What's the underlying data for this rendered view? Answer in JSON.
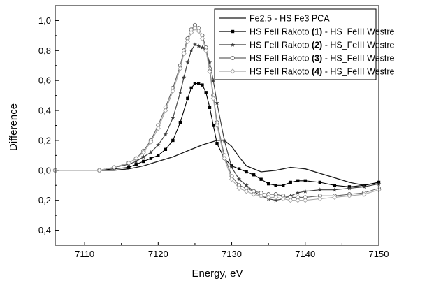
{
  "chart_data": {
    "type": "line",
    "title": "",
    "xlabel": "Energy, eV",
    "ylabel": "Difference",
    "xlim": [
      7106,
      7150
    ],
    "ylim": [
      -0.5,
      1.1
    ],
    "x_ticks": [
      7110,
      7120,
      7130,
      7140,
      7150
    ],
    "y_ticks": [
      -0.4,
      -0.2,
      0.0,
      0.2,
      0.4,
      0.6,
      0.8,
      1.0
    ],
    "y_tick_labels": [
      "-0,4",
      "-0,2",
      "0,0",
      "0,2",
      "0,4",
      "0,6",
      "0,8",
      "1,0"
    ],
    "grid": false,
    "legend_position": "top-right",
    "legend_items": [
      {
        "text": "Fe2.5 - HS Fe3 PCA",
        "bold": "",
        "suffix": ""
      },
      {
        "text": "HS FeII Rakoto ",
        "bold": "(1)",
        "suffix": " - HS_FeIII Westre"
      },
      {
        "text": "HS FeII Rakoto ",
        "bold": "(2)",
        "suffix": " - HS_FeIII Westre"
      },
      {
        "text": "HS FeII Rakoto ",
        "bold": "(3)",
        "suffix": " - HS_FeIII Westre"
      },
      {
        "text": "HS FeII Rakoto ",
        "bold": "(4)",
        "suffix": " - HS_FeIII Westre"
      }
    ],
    "series": [
      {
        "name": "Fe2.5 - HS Fe3 PCA",
        "color": "#1a1a1a",
        "marker": "none",
        "x": [
          7106,
          7114,
          7116,
          7118,
          7120,
          7122,
          7124,
          7126,
          7128,
          7129,
          7130,
          7131,
          7132,
          7134,
          7136,
          7138,
          7140,
          7142,
          7144,
          7146,
          7148,
          7150
        ],
        "y": [
          0.0,
          0.0,
          0.01,
          0.03,
          0.06,
          0.09,
          0.13,
          0.17,
          0.2,
          0.2,
          0.16,
          0.09,
          0.03,
          -0.01,
          0.0,
          0.02,
          0.01,
          -0.02,
          -0.05,
          -0.08,
          -0.1,
          -0.08
        ]
      },
      {
        "name": "HS FeII Rakoto (1) - HS_FeIII Westre",
        "color": "#000000",
        "marker": "square",
        "x": [
          7106,
          7112,
          7114,
          7116,
          7117,
          7118,
          7119,
          7120,
          7121,
          7122,
          7123,
          7124,
          7124.5,
          7125,
          7125.5,
          7126,
          7126.5,
          7127,
          7127.5,
          7128,
          7129,
          7130,
          7131,
          7132,
          7133,
          7134,
          7135,
          7136,
          7137,
          7138,
          7139,
          7140,
          7142,
          7144,
          7146,
          7148,
          7150
        ],
        "y": [
          0.0,
          0.0,
          0.01,
          0.02,
          0.04,
          0.06,
          0.08,
          0.1,
          0.14,
          0.2,
          0.32,
          0.48,
          0.55,
          0.58,
          0.58,
          0.57,
          0.52,
          0.42,
          0.3,
          0.18,
          0.08,
          0.03,
          0.01,
          -0.01,
          -0.03,
          -0.06,
          -0.09,
          -0.1,
          -0.1,
          -0.08,
          -0.07,
          -0.07,
          -0.08,
          -0.1,
          -0.11,
          -0.1,
          -0.08
        ]
      },
      {
        "name": "HS FeII Rakoto (2) - HS_FeIII Westre",
        "color": "#3a3a3a",
        "marker": "star",
        "x": [
          7106,
          7112,
          7114,
          7116,
          7117,
          7118,
          7119,
          7120,
          7121,
          7122,
          7123,
          7123.5,
          7124,
          7124.5,
          7125,
          7125.5,
          7126,
          7126.5,
          7127,
          7127.5,
          7128,
          7129,
          7130,
          7131,
          7132,
          7133,
          7134,
          7135,
          7136,
          7137,
          7138,
          7139,
          7140,
          7142,
          7144,
          7146,
          7148,
          7150
        ],
        "y": [
          0.0,
          0.0,
          0.02,
          0.04,
          0.06,
          0.09,
          0.12,
          0.17,
          0.24,
          0.35,
          0.52,
          0.62,
          0.72,
          0.8,
          0.84,
          0.83,
          0.82,
          0.8,
          0.72,
          0.6,
          0.45,
          0.2,
          0.02,
          -0.06,
          -0.1,
          -0.14,
          -0.17,
          -0.19,
          -0.2,
          -0.19,
          -0.17,
          -0.15,
          -0.14,
          -0.13,
          -0.13,
          -0.12,
          -0.11,
          -0.09
        ]
      },
      {
        "name": "HS FeII Rakoto (3) - HS_FeIII Westre",
        "color": "#666666",
        "marker": "circle",
        "x": [
          7106,
          7112,
          7114,
          7116,
          7117,
          7118,
          7119,
          7120,
          7121,
          7122,
          7123,
          7123.5,
          7124,
          7124.5,
          7125,
          7125.5,
          7126,
          7126.5,
          7127,
          7127.5,
          7128,
          7129,
          7130,
          7131,
          7132,
          7133,
          7134,
          7135,
          7136,
          7137,
          7138,
          7139,
          7140,
          7142,
          7144,
          7146,
          7148,
          7150
        ],
        "y": [
          0.0,
          0.0,
          0.02,
          0.05,
          0.08,
          0.13,
          0.2,
          0.3,
          0.42,
          0.55,
          0.7,
          0.8,
          0.88,
          0.94,
          0.97,
          0.95,
          0.9,
          0.82,
          0.68,
          0.5,
          0.32,
          0.1,
          -0.04,
          -0.1,
          -0.12,
          -0.14,
          -0.15,
          -0.16,
          -0.16,
          -0.17,
          -0.18,
          -0.18,
          -0.18,
          -0.17,
          -0.17,
          -0.16,
          -0.15,
          -0.12
        ]
      },
      {
        "name": "HS FeII Rakoto (4) - HS_FeIII Westre",
        "color": "#a8a8a8",
        "marker": "diamond",
        "x": [
          7106,
          7112,
          7114,
          7116,
          7117,
          7118,
          7119,
          7120,
          7121,
          7122,
          7123,
          7123.5,
          7124,
          7124.5,
          7125,
          7125.5,
          7126,
          7126.5,
          7127,
          7127.5,
          7128,
          7129,
          7130,
          7131,
          7132,
          7133,
          7134,
          7135,
          7136,
          7137,
          7138,
          7139,
          7140,
          7142,
          7144,
          7146,
          7148,
          7150
        ],
        "y": [
          0.0,
          0.0,
          0.02,
          0.05,
          0.08,
          0.12,
          0.19,
          0.28,
          0.4,
          0.53,
          0.68,
          0.78,
          0.86,
          0.92,
          0.95,
          0.93,
          0.88,
          0.8,
          0.66,
          0.48,
          0.3,
          0.08,
          -0.06,
          -0.12,
          -0.14,
          -0.16,
          -0.17,
          -0.18,
          -0.18,
          -0.19,
          -0.2,
          -0.2,
          -0.2,
          -0.19,
          -0.18,
          -0.17,
          -0.16,
          -0.13
        ]
      }
    ]
  }
}
